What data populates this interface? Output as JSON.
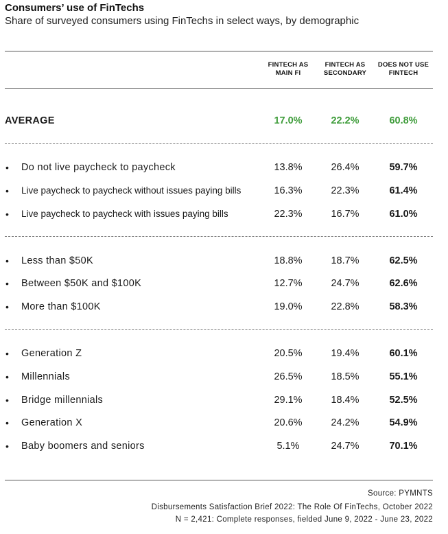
{
  "title": "Consumers’ use of FinTechs",
  "subtitle": "Share of surveyed consumers using FinTechs in select ways, by demographic",
  "columns": [
    [
      "FINTECH AS",
      "MAIN FI"
    ],
    [
      "FINTECH AS",
      "SECONDARY"
    ],
    [
      "DOES NOT USE",
      "FINTECH"
    ]
  ],
  "average": {
    "label": "AVERAGE",
    "values": [
      "17.0%",
      "22.2%",
      "60.8%"
    ]
  },
  "groups": [
    [
      {
        "label": "Do not live paycheck to paycheck",
        "values": [
          "13.8%",
          "26.4%",
          "59.7%"
        ]
      },
      {
        "label": "Live paycheck to paycheck without issues paying bills",
        "values": [
          "16.3%",
          "22.3%",
          "61.4%"
        ]
      },
      {
        "label": "Live paycheck to paycheck with issues paying bills",
        "values": [
          "22.3%",
          "16.7%",
          "61.0%"
        ]
      }
    ],
    [
      {
        "label": "Less than $50K",
        "values": [
          "18.8%",
          "18.7%",
          "62.5%"
        ]
      },
      {
        "label": "Between $50K and $100K",
        "values": [
          "12.7%",
          "24.7%",
          "62.6%"
        ]
      },
      {
        "label": "More than $100K",
        "values": [
          "19.0%",
          "22.8%",
          "58.3%"
        ]
      }
    ],
    [
      {
        "label": "Generation Z",
        "values": [
          "20.5%",
          "19.4%",
          "60.1%"
        ]
      },
      {
        "label": "Millennials",
        "values": [
          "26.5%",
          "18.5%",
          "55.1%"
        ]
      },
      {
        "label": "Bridge millennials",
        "values": [
          "29.1%",
          "18.4%",
          "52.5%"
        ]
      },
      {
        "label": "Generation X",
        "values": [
          "20.6%",
          "24.2%",
          "54.9%"
        ]
      },
      {
        "label": "Baby boomers and seniors",
        "values": [
          "5.1%",
          "24.7%",
          "70.1%"
        ]
      }
    ]
  ],
  "source": {
    "line1": "Source: PYMNTS",
    "line2": "Disbursements Satisfaction Brief 2022: The Role Of FinTechs, October 2022",
    "line3": "N = 2,421: Complete responses, fielded June 9, 2022 - June 23, 2022"
  },
  "colors": {
    "accent": "#3e9c3a",
    "text": "#1a1a1a"
  },
  "chart_data": {
    "type": "table",
    "title": "Consumers’ use of FinTechs",
    "subtitle": "Share of surveyed consumers using FinTechs in select ways, by demographic",
    "columns": [
      "FINTECH AS MAIN FI",
      "FINTECH AS SECONDARY",
      "DOES NOT USE FINTECH"
    ],
    "rows": [
      {
        "label": "AVERAGE",
        "values": [
          17.0,
          22.2,
          60.8
        ]
      },
      {
        "label": "Do not live paycheck to paycheck",
        "values": [
          13.8,
          26.4,
          59.7
        ]
      },
      {
        "label": "Live paycheck to paycheck without issues paying bills",
        "values": [
          16.3,
          22.3,
          61.4
        ]
      },
      {
        "label": "Live paycheck to paycheck with issues paying bills",
        "values": [
          22.3,
          16.7,
          61.0
        ]
      },
      {
        "label": "Less than $50K",
        "values": [
          18.8,
          18.7,
          62.5
        ]
      },
      {
        "label": "Between $50K and $100K",
        "values": [
          12.7,
          24.7,
          62.6
        ]
      },
      {
        "label": "More than $100K",
        "values": [
          19.0,
          22.8,
          58.3
        ]
      },
      {
        "label": "Generation Z",
        "values": [
          20.5,
          19.4,
          60.1
        ]
      },
      {
        "label": "Millennials",
        "values": [
          26.5,
          18.5,
          55.1
        ]
      },
      {
        "label": "Bridge millennials",
        "values": [
          29.1,
          18.4,
          52.5
        ]
      },
      {
        "label": "Generation X",
        "values": [
          20.6,
          24.2,
          54.9
        ]
      },
      {
        "label": "Baby boomers and seniors",
        "values": [
          5.1,
          24.7,
          70.1
        ]
      }
    ]
  }
}
